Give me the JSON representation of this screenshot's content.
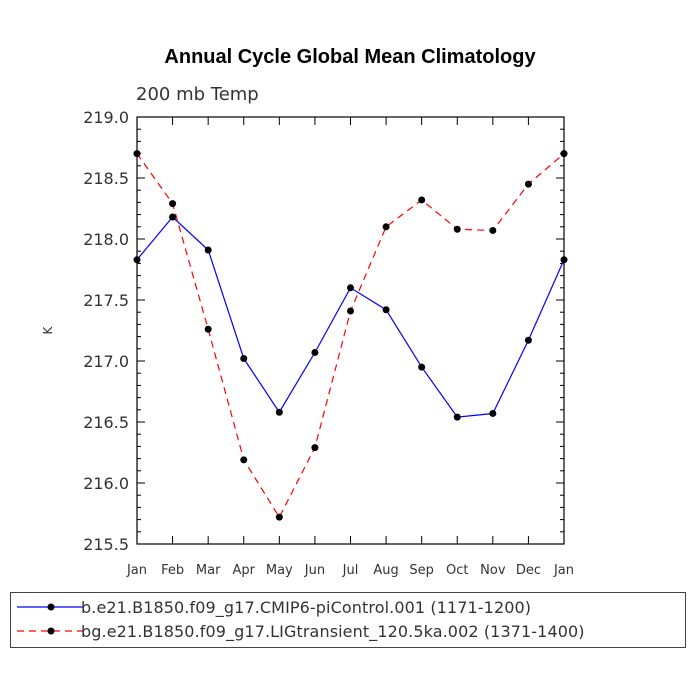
{
  "chart_data": {
    "type": "line",
    "title": "Annual Cycle Global Mean Climatology",
    "subtitle": "200 mb Temp",
    "xlabel": "",
    "ylabel": "K",
    "categories": [
      "Jan",
      "Feb",
      "Mar",
      "Apr",
      "May",
      "Jun",
      "Jul",
      "Aug",
      "Sep",
      "Oct",
      "Nov",
      "Dec",
      "Jan"
    ],
    "ylim": [
      215.5,
      219.0
    ],
    "yticks": [
      "215.5",
      "216.0",
      "216.5",
      "217.0",
      "217.5",
      "218.0",
      "218.5",
      "219.0"
    ],
    "grid": false,
    "legend_position": "bottom",
    "series": [
      {
        "name": "b.e21.B1850.f09_g17.CMIP6-piControl.001 (1171-1200)",
        "color": "#0000ff",
        "line_style": "solid",
        "marker": "filled-circle",
        "values": [
          217.83,
          218.18,
          217.91,
          217.02,
          216.58,
          217.07,
          217.6,
          217.42,
          216.95,
          216.54,
          216.57,
          217.17,
          217.83
        ]
      },
      {
        "name": "bg.e21.B1850.f09_g17.LIGtransient_120.5ka.002 (1371-1400)",
        "color": "#ff0000",
        "line_style": "dashed",
        "marker": "filled-circle",
        "values": [
          218.7,
          218.29,
          217.26,
          216.19,
          215.72,
          216.29,
          217.41,
          218.1,
          218.32,
          218.08,
          218.07,
          218.45,
          218.7
        ]
      }
    ]
  }
}
